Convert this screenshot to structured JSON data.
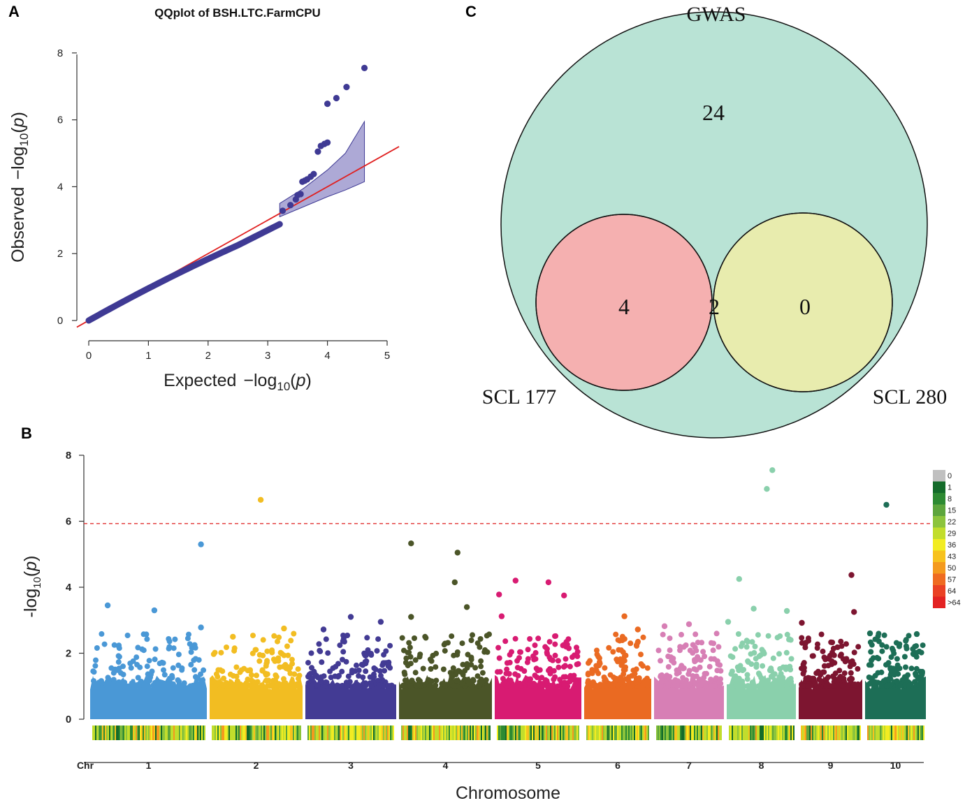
{
  "chart_data": [
    {
      "panel": "A",
      "type": "scatter",
      "title": "QQplot of BSH.LTC.FarmCPU",
      "xlabel": "Expected",
      "ylabel": "Observed",
      "axis_expr": {
        "prefix": "−log",
        "sub": "10",
        "arg": "p"
      },
      "xlim": [
        0,
        5
      ],
      "ylim": [
        0,
        8
      ],
      "xticks": [
        "0",
        "1",
        "2",
        "3",
        "4",
        "5"
      ],
      "yticks": [
        "0",
        "2",
        "4",
        "6",
        "8"
      ],
      "reference_line": {
        "from": [
          -0.2,
          -0.2
        ],
        "to": [
          5.2,
          5.2
        ],
        "color": "#e02020"
      },
      "confidence_band": {
        "color": "#8a84c4",
        "x": [
          3.2,
          3.6,
          4.0,
          4.3,
          4.62
        ],
        "upper": [
          3.5,
          3.95,
          4.5,
          5.0,
          5.95
        ],
        "lower": [
          3.1,
          3.4,
          3.7,
          3.9,
          4.15
        ]
      },
      "point_color": "#3f3a94",
      "tail_points": [
        {
          "x": 3.25,
          "y": 3.28
        },
        {
          "x": 3.38,
          "y": 3.45
        },
        {
          "x": 3.47,
          "y": 3.62
        },
        {
          "x": 3.5,
          "y": 3.75
        },
        {
          "x": 3.55,
          "y": 3.78
        },
        {
          "x": 3.58,
          "y": 4.15
        },
        {
          "x": 3.62,
          "y": 4.18
        },
        {
          "x": 3.66,
          "y": 4.22
        },
        {
          "x": 3.72,
          "y": 4.3
        },
        {
          "x": 3.77,
          "y": 4.38
        },
        {
          "x": 3.84,
          "y": 5.05
        },
        {
          "x": 3.89,
          "y": 5.22
        },
        {
          "x": 3.95,
          "y": 5.28
        },
        {
          "x": 4.0,
          "y": 5.32
        },
        {
          "x": 4.0,
          "y": 6.48
        },
        {
          "x": 4.15,
          "y": 6.65
        },
        {
          "x": 4.32,
          "y": 6.98
        },
        {
          "x": 4.62,
          "y": 7.55
        }
      ]
    },
    {
      "panel": "B",
      "type": "scatter",
      "subtype": "manhattan",
      "xlabel": "Chromosome",
      "ylabel": "-log",
      "ylabel_sub": "10",
      "ylabel_arg": "p",
      "ylim": [
        0,
        8
      ],
      "yticks": [
        "0",
        "2",
        "4",
        "6",
        "8"
      ],
      "chr_label": "Chr",
      "threshold": 5.93,
      "threshold_color": "#e03030",
      "chromosomes": [
        {
          "name": "1",
          "color": "#4a98d6",
          "peaks": [
            {
              "p": 0.15,
              "y": 3.45
            },
            {
              "p": 0.55,
              "y": 3.3
            },
            {
              "p": 0.95,
              "y": 5.3
            },
            {
              "p": 0.95,
              "y": 2.78
            }
          ]
        },
        {
          "name": "2",
          "color": "#f2bd22",
          "peaks": [
            {
              "p": 0.55,
              "y": 6.65
            },
            {
              "p": 0.25,
              "y": 2.5
            },
            {
              "p": 0.8,
              "y": 2.75
            }
          ]
        },
        {
          "name": "3",
          "color": "#433b94",
          "peaks": [
            {
              "p": 0.5,
              "y": 3.1
            },
            {
              "p": 0.83,
              "y": 2.95
            },
            {
              "p": 0.2,
              "y": 2.72
            }
          ]
        },
        {
          "name": "4",
          "color": "#4b5528",
          "peaks": [
            {
              "p": 0.13,
              "y": 5.33
            },
            {
              "p": 0.63,
              "y": 5.05
            },
            {
              "p": 0.6,
              "y": 4.15
            },
            {
              "p": 0.73,
              "y": 3.4
            },
            {
              "p": 0.13,
              "y": 3.1
            }
          ]
        },
        {
          "name": "5",
          "color": "#d81b72",
          "peaks": [
            {
              "p": 0.24,
              "y": 4.2
            },
            {
              "p": 0.05,
              "y": 3.78
            },
            {
              "p": 0.62,
              "y": 4.15
            },
            {
              "p": 0.8,
              "y": 3.75
            },
            {
              "p": 0.08,
              "y": 3.12
            }
          ]
        },
        {
          "name": "6",
          "color": "#ea6a22",
          "peaks": [
            {
              "p": 0.6,
              "y": 3.12
            },
            {
              "p": 0.8,
              "y": 2.72
            }
          ]
        },
        {
          "name": "7",
          "color": "#d77fb5",
          "peaks": [
            {
              "p": 0.5,
              "y": 2.88
            },
            {
              "p": 0.15,
              "y": 2.82
            }
          ]
        },
        {
          "name": "8",
          "color": "#8ad0ac",
          "peaks": [
            {
              "p": 0.58,
              "y": 6.98
            },
            {
              "p": 0.66,
              "y": 7.55
            },
            {
              "p": 0.18,
              "y": 4.25
            },
            {
              "p": 0.39,
              "y": 3.35
            },
            {
              "p": 0.02,
              "y": 2.95
            },
            {
              "p": 0.87,
              "y": 3.28
            }
          ]
        },
        {
          "name": "9",
          "color": "#7d1530",
          "peaks": [
            {
              "p": 0.83,
              "y": 4.37
            },
            {
              "p": 0.87,
              "y": 3.25
            },
            {
              "p": 0.05,
              "y": 2.92
            }
          ]
        },
        {
          "name": "10",
          "color": "#1d6e56",
          "peaks": [
            {
              "p": 0.35,
              "y": 6.5
            },
            {
              "p": 0.08,
              "y": 2.6
            },
            {
              "p": 0.85,
              "y": 2.58
            }
          ]
        }
      ],
      "density_legend": {
        "labels": [
          "0",
          "1",
          "8",
          "15",
          "22",
          "29",
          "36",
          "43",
          "50",
          "57",
          "64",
          ">64"
        ],
        "colors": [
          "#c0c0c0",
          "#146b2a",
          "#2d8a32",
          "#5da53c",
          "#8cc43c",
          "#c2dd2c",
          "#f2ec22",
          "#f7c21e",
          "#f49a1e",
          "#ef6b21",
          "#ea4124",
          "#e32222"
        ]
      }
    },
    {
      "panel": "C",
      "type": "venn",
      "sets": [
        {
          "name": "GWAS",
          "color": "#b9e3d5"
        },
        {
          "name": "SCL 177",
          "color": "#f5b0b0"
        },
        {
          "name": "SCL 280",
          "color": "#e8ecae"
        }
      ],
      "regions": {
        "gwas_only": "24",
        "scl177_only": "4",
        "intersection": "2",
        "scl280_only": "0"
      },
      "intersection_color": "#e4c27a"
    }
  ]
}
